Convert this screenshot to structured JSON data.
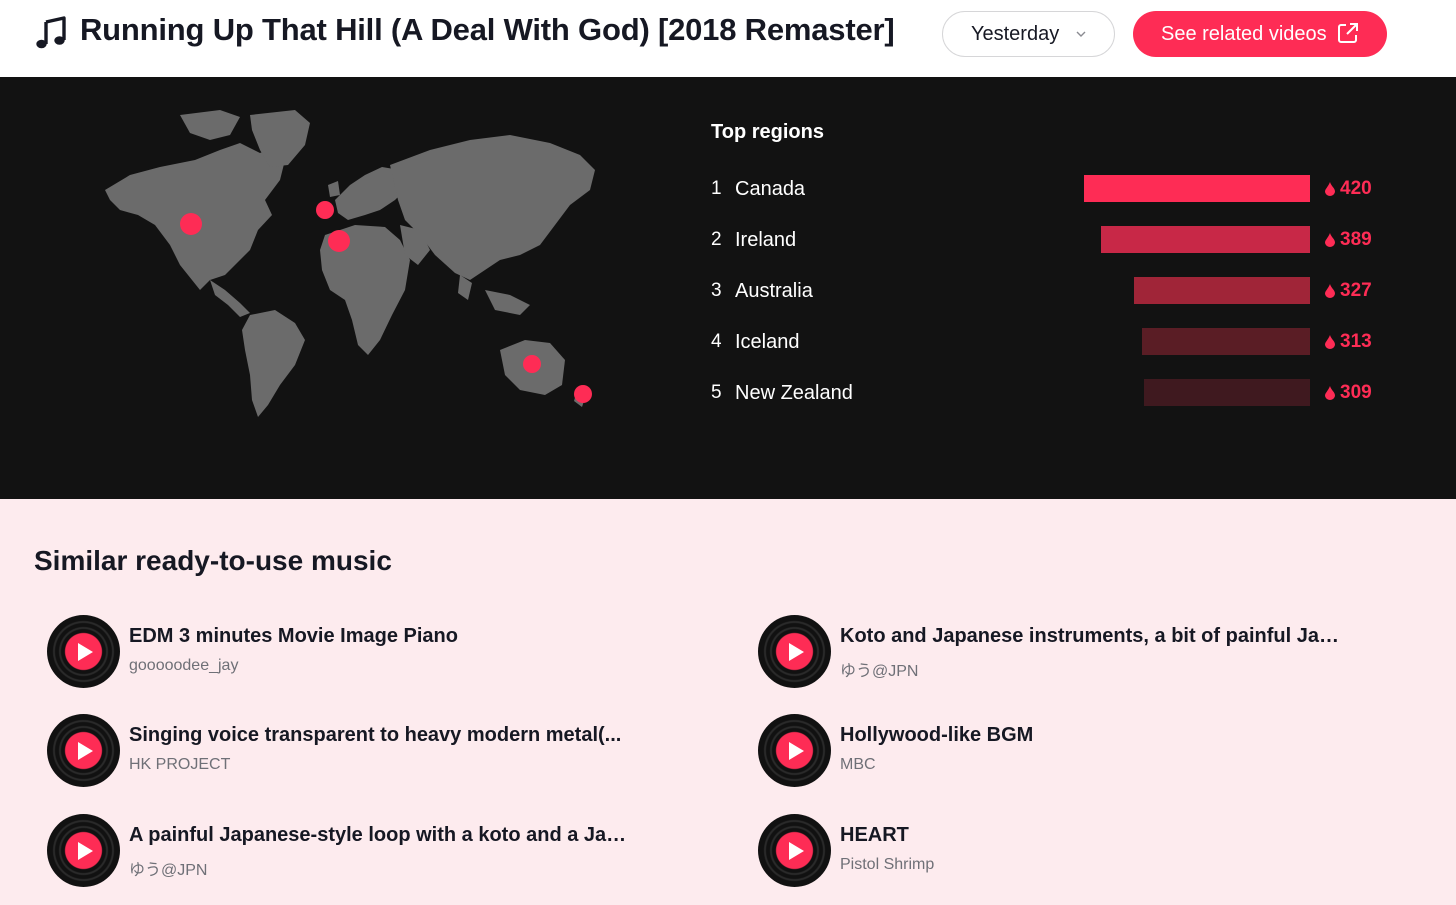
{
  "header": {
    "title": "Running Up That Hill (A Deal With God) [2018 Remaster]",
    "note_icon": "music-note-icon",
    "period": "Yesterday",
    "related_button": "See related videos",
    "related_icon": "external-link-icon"
  },
  "regions": {
    "title": "Top regions",
    "items": [
      {
        "rank": "1",
        "name": "Canada",
        "value": "420"
      },
      {
        "rank": "2",
        "name": "Ireland",
        "value": "389"
      },
      {
        "rank": "3",
        "name": "Australia",
        "value": "327"
      },
      {
        "rank": "4",
        "name": "Iceland",
        "value": "313"
      },
      {
        "rank": "5",
        "name": "New Zealand",
        "value": "309"
      }
    ]
  },
  "similar": {
    "title": "Similar ready-to-use music",
    "tracks": [
      {
        "title": "EDM 3 minutes Movie Image Piano",
        "artist": "gooooodee_jay"
      },
      {
        "title": "Koto and Japanese instruments, a bit of painful Jap...",
        "artist": "ゆう@JPN"
      },
      {
        "title": "Singing voice transparent to heavy modern metal(...",
        "artist": "HK PROJECT"
      },
      {
        "title": "Hollywood-like BGM",
        "artist": "MBC"
      },
      {
        "title": "A painful Japanese-style loop with a koto and a Jap...",
        "artist": "ゆう@JPN"
      },
      {
        "title": "HEART",
        "artist": "Pistol Shrimp"
      }
    ]
  },
  "colors": {
    "accent": "#fe2c55",
    "bar_colors": [
      "#fe2c55",
      "#c82847",
      "#a02538",
      "#5a1d25",
      "#3f191f"
    ],
    "map_land": "#6b6b6b",
    "dark_bg": "#121212",
    "light_bg": "#fdebee"
  }
}
